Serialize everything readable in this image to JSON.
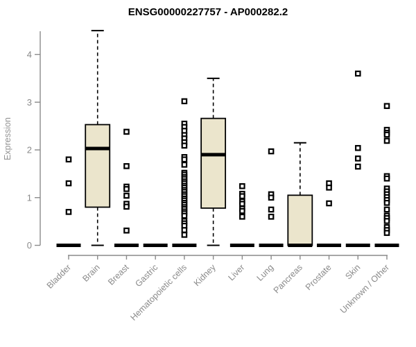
{
  "chart_data": {
    "type": "boxplot",
    "title": "ENSG00000227757 - AP000282.2",
    "ylabel": "Expression",
    "xlabel": "",
    "ylim": [
      0,
      4.6
    ],
    "yticks": [
      0,
      1,
      2,
      3,
      4
    ],
    "grid": false,
    "legend": false,
    "outlier_marker": "open-square",
    "colors": {
      "box_fill": "#ebe5cc",
      "box_stroke": "#000000",
      "median": "#000000",
      "whisker": "#000000",
      "axis": "#8a8a8a",
      "tick_label": "#8a8a8a",
      "title": "#000000",
      "background": "#ffffff"
    },
    "categories": [
      "Bladder",
      "Brain",
      "Breast",
      "Gastric",
      "Hematopoietic cells",
      "Kidney",
      "Liver",
      "Lung",
      "Pancreas",
      "Prostate",
      "Skin",
      "Unknown / Other"
    ],
    "series": [
      {
        "name": "Bladder",
        "min": 0,
        "q1": 0,
        "median": 0,
        "q3": 0,
        "max": 0,
        "outliers": [
          1.8,
          1.3,
          0.7
        ]
      },
      {
        "name": "Brain",
        "min": 0,
        "q1": 0.8,
        "median": 2.03,
        "q3": 2.53,
        "max": 4.5,
        "outliers": []
      },
      {
        "name": "Breast",
        "min": 0,
        "q1": 0,
        "median": 0,
        "q3": 0,
        "max": 0,
        "outliers": [
          2.38,
          1.66,
          1.23,
          1.18,
          1.04,
          0.87,
          0.81,
          0.31
        ]
      },
      {
        "name": "Gastric",
        "min": 0,
        "q1": 0,
        "median": 0,
        "q3": 0,
        "max": 0,
        "outliers": []
      },
      {
        "name": "Hematopoietic cells",
        "min": 0,
        "q1": 0,
        "median": 0,
        "q3": 0,
        "max": 0,
        "outliers": [
          3.02,
          2.55,
          2.48,
          2.4,
          2.31,
          2.24,
          2.16,
          2.09,
          1.85,
          1.8,
          1.69,
          1.52,
          1.48,
          1.43,
          1.39,
          1.34,
          1.3,
          1.25,
          1.21,
          1.16,
          1.12,
          1.07,
          1.03,
          0.98,
          0.94,
          0.89,
          0.85,
          0.8,
          0.76,
          0.71,
          0.67,
          0.62,
          0.51,
          0.46,
          0.41,
          0.32,
          0.22
        ]
      },
      {
        "name": "Kidney",
        "min": 0,
        "q1": 0.78,
        "median": 1.9,
        "q3": 2.66,
        "max": 3.5,
        "outliers": []
      },
      {
        "name": "Liver",
        "min": 0,
        "q1": 0,
        "median": 0,
        "q3": 0,
        "max": 0,
        "outliers": [
          1.24,
          1.08,
          1.03,
          0.92,
          0.87,
          0.77,
          0.72,
          0.6
        ]
      },
      {
        "name": "Lung",
        "min": 0,
        "q1": 0,
        "median": 0,
        "q3": 0,
        "max": 0,
        "outliers": [
          1.97,
          1.07,
          1.0,
          0.75,
          0.6
        ]
      },
      {
        "name": "Pancreas",
        "min": 0,
        "q1": 0,
        "median": 0,
        "q3": 1.05,
        "max": 2.15,
        "outliers": []
      },
      {
        "name": "Prostate",
        "min": 0,
        "q1": 0,
        "median": 0,
        "q3": 0,
        "max": 0,
        "outliers": [
          1.3,
          1.21,
          0.88
        ]
      },
      {
        "name": "Skin",
        "min": 0,
        "q1": 0,
        "median": 0,
        "q3": 0,
        "max": 0,
        "outliers": [
          3.6,
          2.04,
          1.82,
          1.65
        ]
      },
      {
        "name": "Unknown / Other",
        "min": 0,
        "q1": 0,
        "median": 0,
        "q3": 0,
        "max": 0,
        "outliers": [
          2.92,
          2.42,
          2.36,
          2.32,
          2.19,
          1.45,
          1.4,
          1.19,
          1.13,
          1.07,
          1.01,
          0.95,
          0.89,
          0.75,
          0.62,
          0.57,
          0.51,
          0.38,
          0.32,
          0.26
        ]
      }
    ]
  }
}
